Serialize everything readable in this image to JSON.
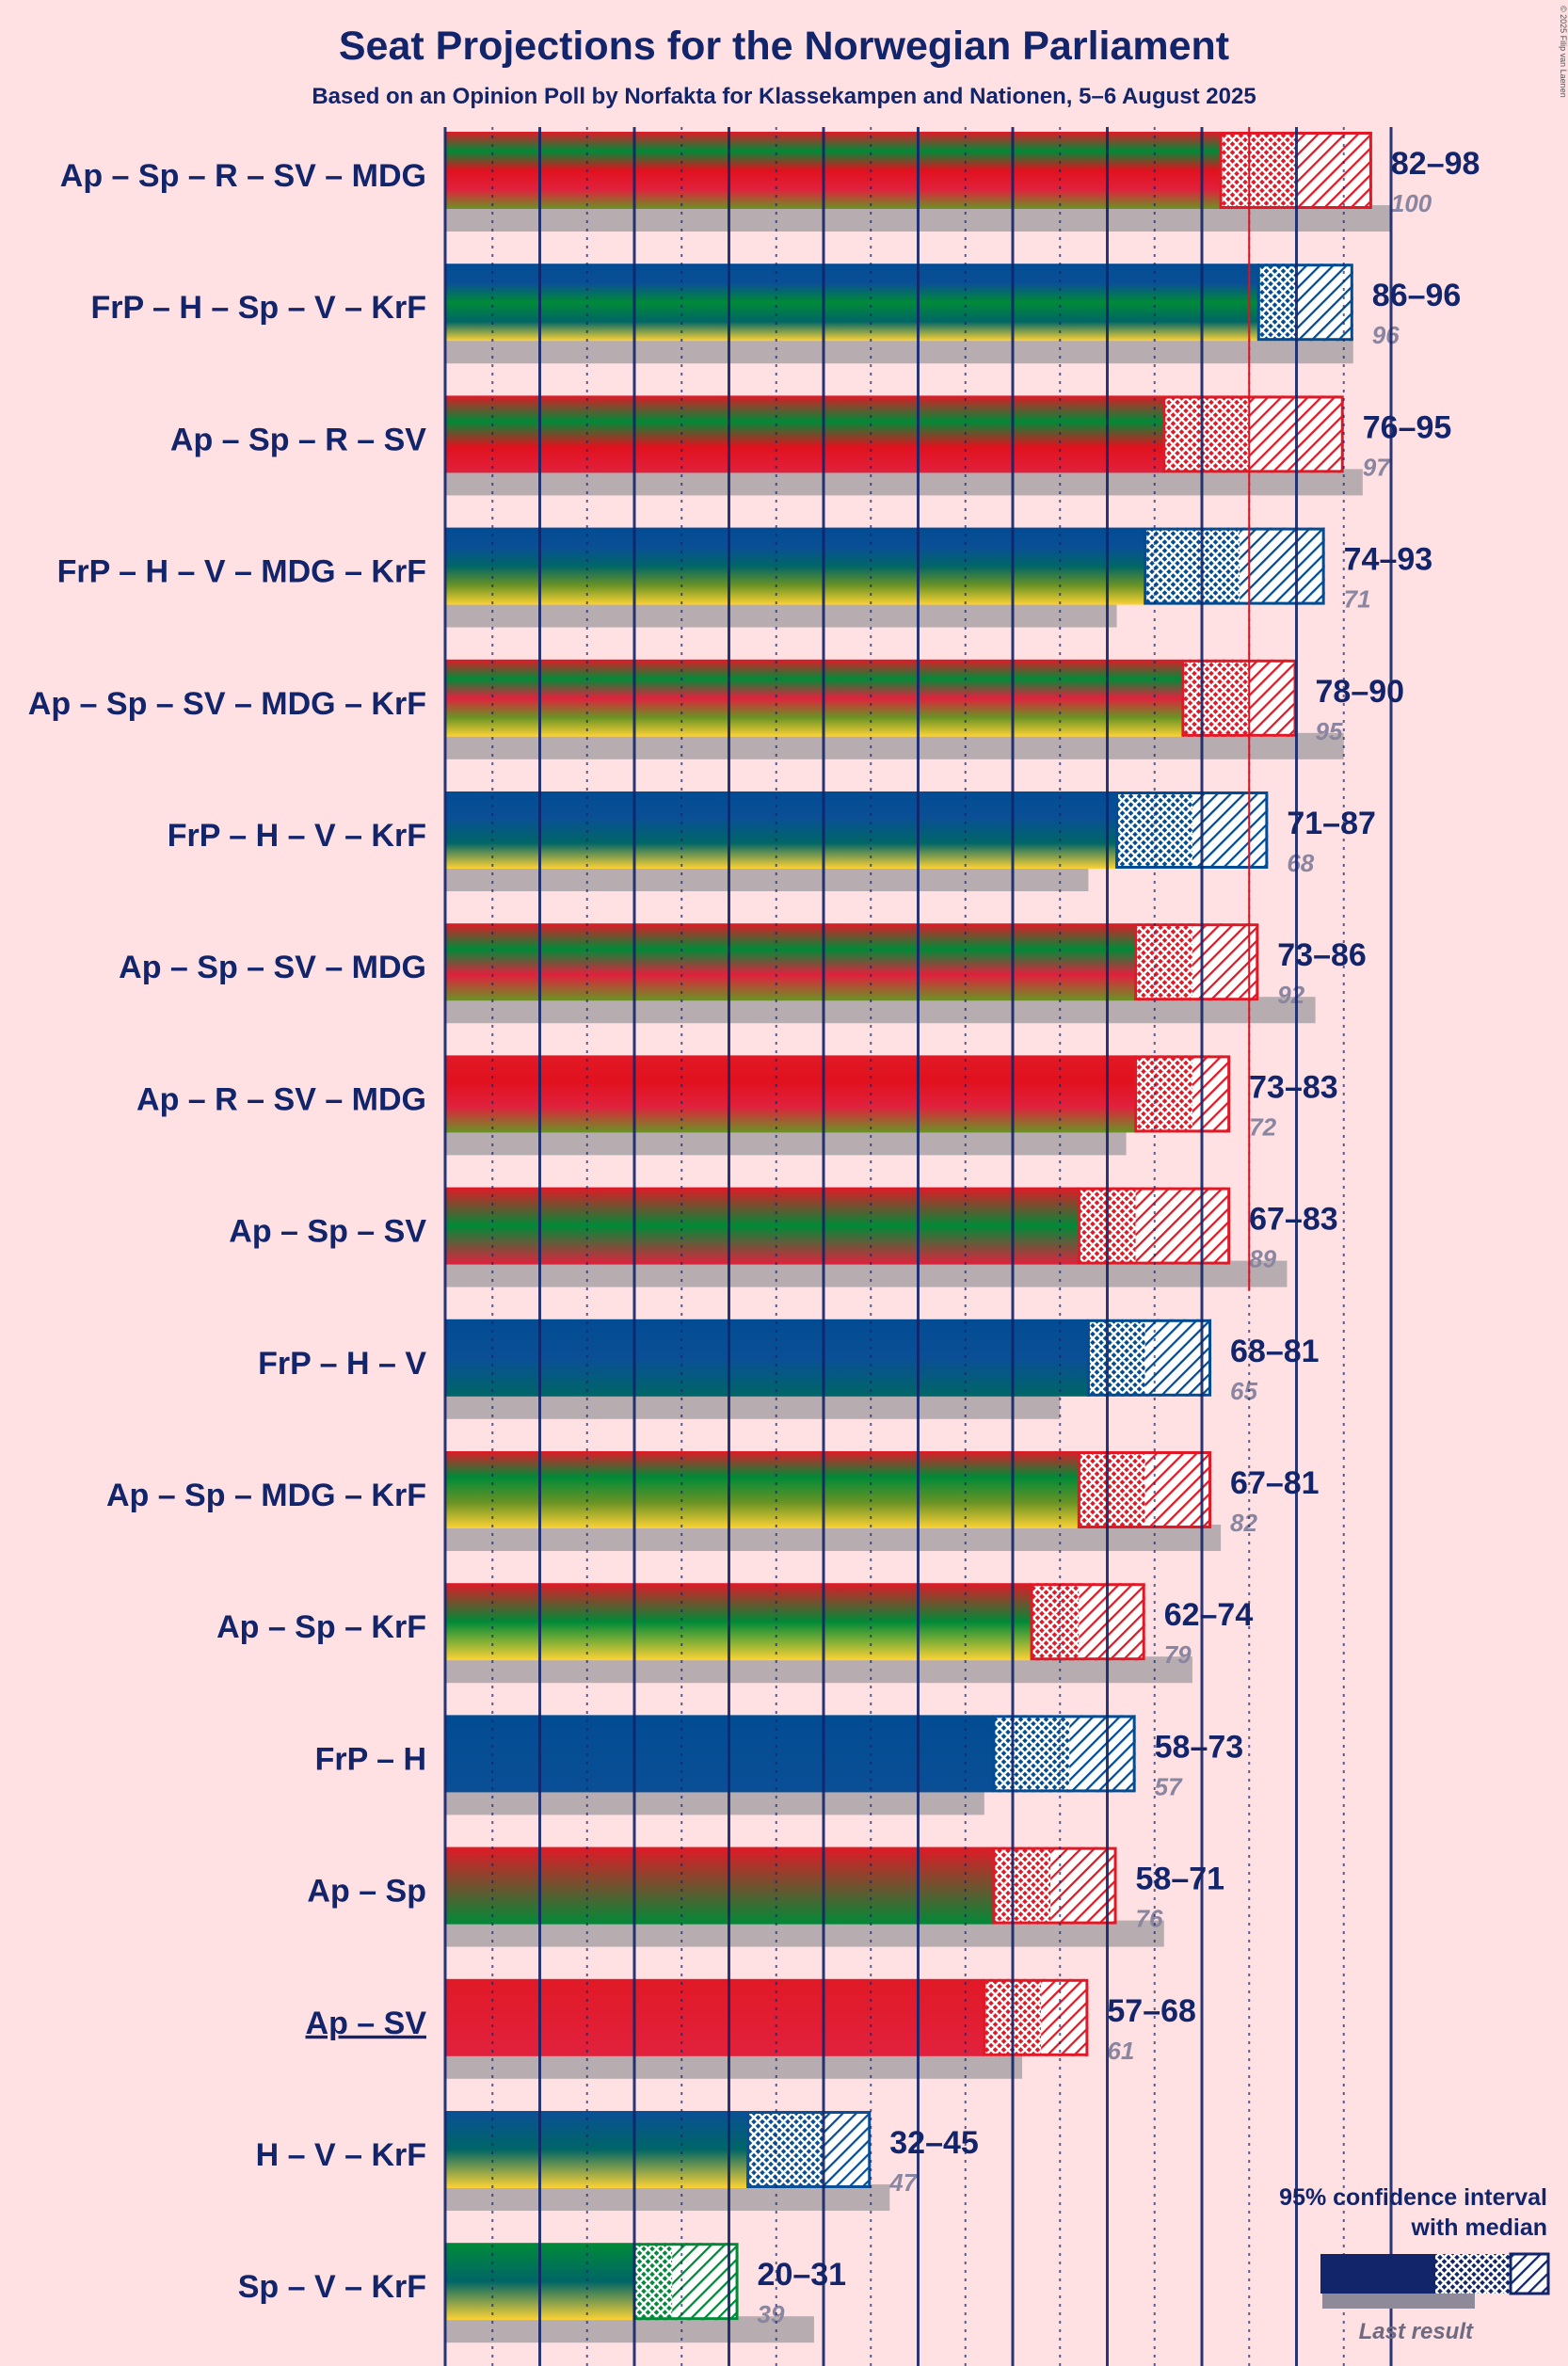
{
  "chart_data": {
    "type": "bar",
    "title": "Seat Projections for the Norwegian Parliament",
    "subtitle": "Based on an Opinion Poll by Norfakta for Klassekampen and Nationen, 5–6 August 2025",
    "copyright": "© 2025 Filip van Laenen",
    "majority": 85,
    "xlim": [
      0,
      105
    ],
    "legend": {
      "title_line1": "95% confidence interval",
      "title_line2": "with median",
      "last_label": "Last result"
    },
    "party_colors": {
      "Ap": "#E11926",
      "Sp": "#008A38",
      "R": "#E1111E",
      "SV": "#E1213D",
      "MDG": "#6A9325",
      "FrP": "#024C93",
      "H": "#0A4F96",
      "V": "#006666",
      "KrF": "#FDD235"
    },
    "coalitions": [
      {
        "label": "Ap – Sp – R – SV – MDG",
        "parties": [
          "Ap",
          "Sp",
          "R",
          "SV",
          "MDG"
        ],
        "low": 82,
        "median": 90,
        "high": 98,
        "range_label": "82–98",
        "last": 100,
        "last_label": "100",
        "primary": "#E11926"
      },
      {
        "label": "FrP – H – Sp – V – KrF",
        "parties": [
          "FrP",
          "H",
          "Sp",
          "V",
          "KrF"
        ],
        "low": 86,
        "median": 90,
        "high": 96,
        "range_label": "86–96",
        "last": 96,
        "last_label": "96",
        "primary": "#024C93"
      },
      {
        "label": "Ap – Sp – R – SV",
        "parties": [
          "Ap",
          "Sp",
          "R",
          "SV"
        ],
        "low": 76,
        "median": 85,
        "high": 95,
        "range_label": "76–95",
        "last": 97,
        "last_label": "97",
        "primary": "#E11926"
      },
      {
        "label": "FrP – H – V – MDG – KrF",
        "parties": [
          "FrP",
          "H",
          "V",
          "MDG",
          "KrF"
        ],
        "low": 74,
        "median": 84,
        "high": 93,
        "range_label": "74–93",
        "last": 71,
        "last_label": "71",
        "primary": "#024C93"
      },
      {
        "label": "Ap – Sp – SV – MDG – KrF",
        "parties": [
          "Ap",
          "Sp",
          "SV",
          "MDG",
          "KrF"
        ],
        "low": 78,
        "median": 85,
        "high": 90,
        "range_label": "78–90",
        "last": 95,
        "last_label": "95",
        "primary": "#E11926"
      },
      {
        "label": "FrP – H – V – KrF",
        "parties": [
          "FrP",
          "H",
          "V",
          "KrF"
        ],
        "low": 71,
        "median": 79,
        "high": 87,
        "range_label": "71–87",
        "last": 68,
        "last_label": "68",
        "primary": "#024C93"
      },
      {
        "label": "Ap – Sp – SV – MDG",
        "parties": [
          "Ap",
          "Sp",
          "SV",
          "MDG"
        ],
        "low": 73,
        "median": 79,
        "high": 86,
        "range_label": "73–86",
        "last": 92,
        "last_label": "92",
        "primary": "#E11926"
      },
      {
        "label": "Ap – R – SV – MDG",
        "parties": [
          "Ap",
          "R",
          "SV",
          "MDG"
        ],
        "low": 73,
        "median": 79,
        "high": 83,
        "range_label": "73–83",
        "last": 72,
        "last_label": "72",
        "primary": "#E11926"
      },
      {
        "label": "Ap – Sp – SV",
        "parties": [
          "Ap",
          "Sp",
          "SV"
        ],
        "low": 67,
        "median": 73,
        "high": 83,
        "range_label": "67–83",
        "last": 89,
        "last_label": "89",
        "primary": "#E11926"
      },
      {
        "label": "FrP – H – V",
        "parties": [
          "FrP",
          "H",
          "V"
        ],
        "low": 68,
        "median": 74,
        "high": 81,
        "range_label": "68–81",
        "last": 65,
        "last_label": "65",
        "primary": "#024C93"
      },
      {
        "label": "Ap – Sp – MDG – KrF",
        "parties": [
          "Ap",
          "Sp",
          "MDG",
          "KrF"
        ],
        "low": 67,
        "median": 74,
        "high": 81,
        "range_label": "67–81",
        "last": 82,
        "last_label": "82",
        "primary": "#E11926"
      },
      {
        "label": "Ap – Sp – KrF",
        "parties": [
          "Ap",
          "Sp",
          "KrF"
        ],
        "low": 62,
        "median": 67,
        "high": 74,
        "range_label": "62–74",
        "last": 79,
        "last_label": "79",
        "primary": "#E11926"
      },
      {
        "label": "FrP – H",
        "parties": [
          "FrP",
          "H"
        ],
        "low": 58,
        "median": 66,
        "high": 73,
        "range_label": "58–73",
        "last": 57,
        "last_label": "57",
        "primary": "#024C93"
      },
      {
        "label": "Ap – Sp",
        "parties": [
          "Ap",
          "Sp"
        ],
        "low": 58,
        "median": 64,
        "high": 71,
        "range_label": "58–71",
        "last": 76,
        "last_label": "76",
        "primary": "#E11926"
      },
      {
        "label": "Ap – SV",
        "parties": [
          "Ap",
          "SV"
        ],
        "low": 57,
        "median": 63,
        "high": 68,
        "range_label": "57–68",
        "last": 61,
        "last_label": "61",
        "primary": "#E11926",
        "underline": true
      },
      {
        "label": "H – V – KrF",
        "parties": [
          "H",
          "V",
          "KrF"
        ],
        "low": 32,
        "median": 40,
        "high": 45,
        "range_label": "32–45",
        "last": 47,
        "last_label": "47",
        "primary": "#0A4F96"
      },
      {
        "label": "Sp – V – KrF",
        "parties": [
          "Sp",
          "V",
          "KrF"
        ],
        "low": 20,
        "median": 24,
        "high": 31,
        "range_label": "20–31",
        "last": 39,
        "last_label": "39",
        "primary": "#008A38"
      }
    ]
  }
}
